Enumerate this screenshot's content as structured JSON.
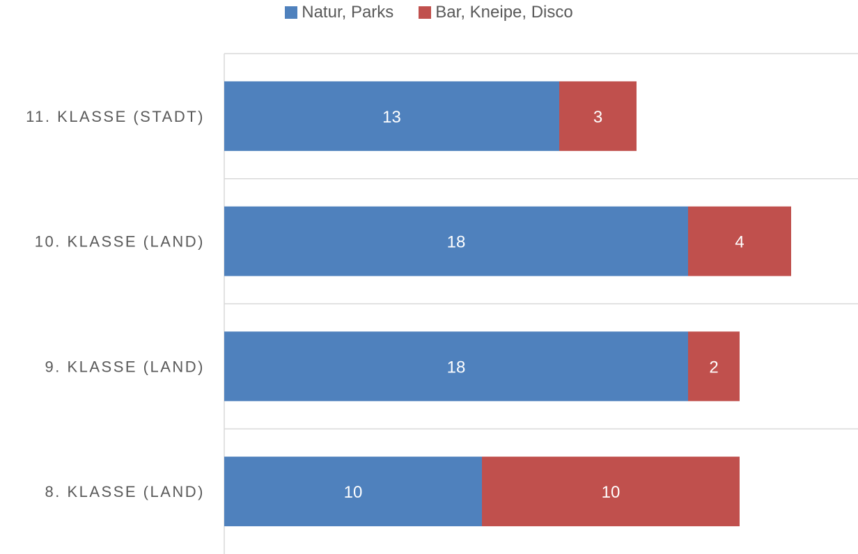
{
  "chart_data": {
    "type": "bar",
    "orientation": "horizontal",
    "stacked": true,
    "categories": [
      "8. KLASSE (LAND)",
      "9. KLASSE (LAND)",
      "10. KLASSE (LAND)",
      "11. KLASSE (STADT)"
    ],
    "series": [
      {
        "name": "Natur, Parks",
        "color": "#4F81BD",
        "values": [
          10,
          18,
          18,
          13
        ]
      },
      {
        "name": "Bar, Kneipe, Disco",
        "color": "#C0504D",
        "values": [
          10,
          2,
          4,
          3
        ]
      }
    ],
    "xlim": [
      0,
      24
    ],
    "grid": true,
    "legend_position": "top-center",
    "data_labels": true
  }
}
